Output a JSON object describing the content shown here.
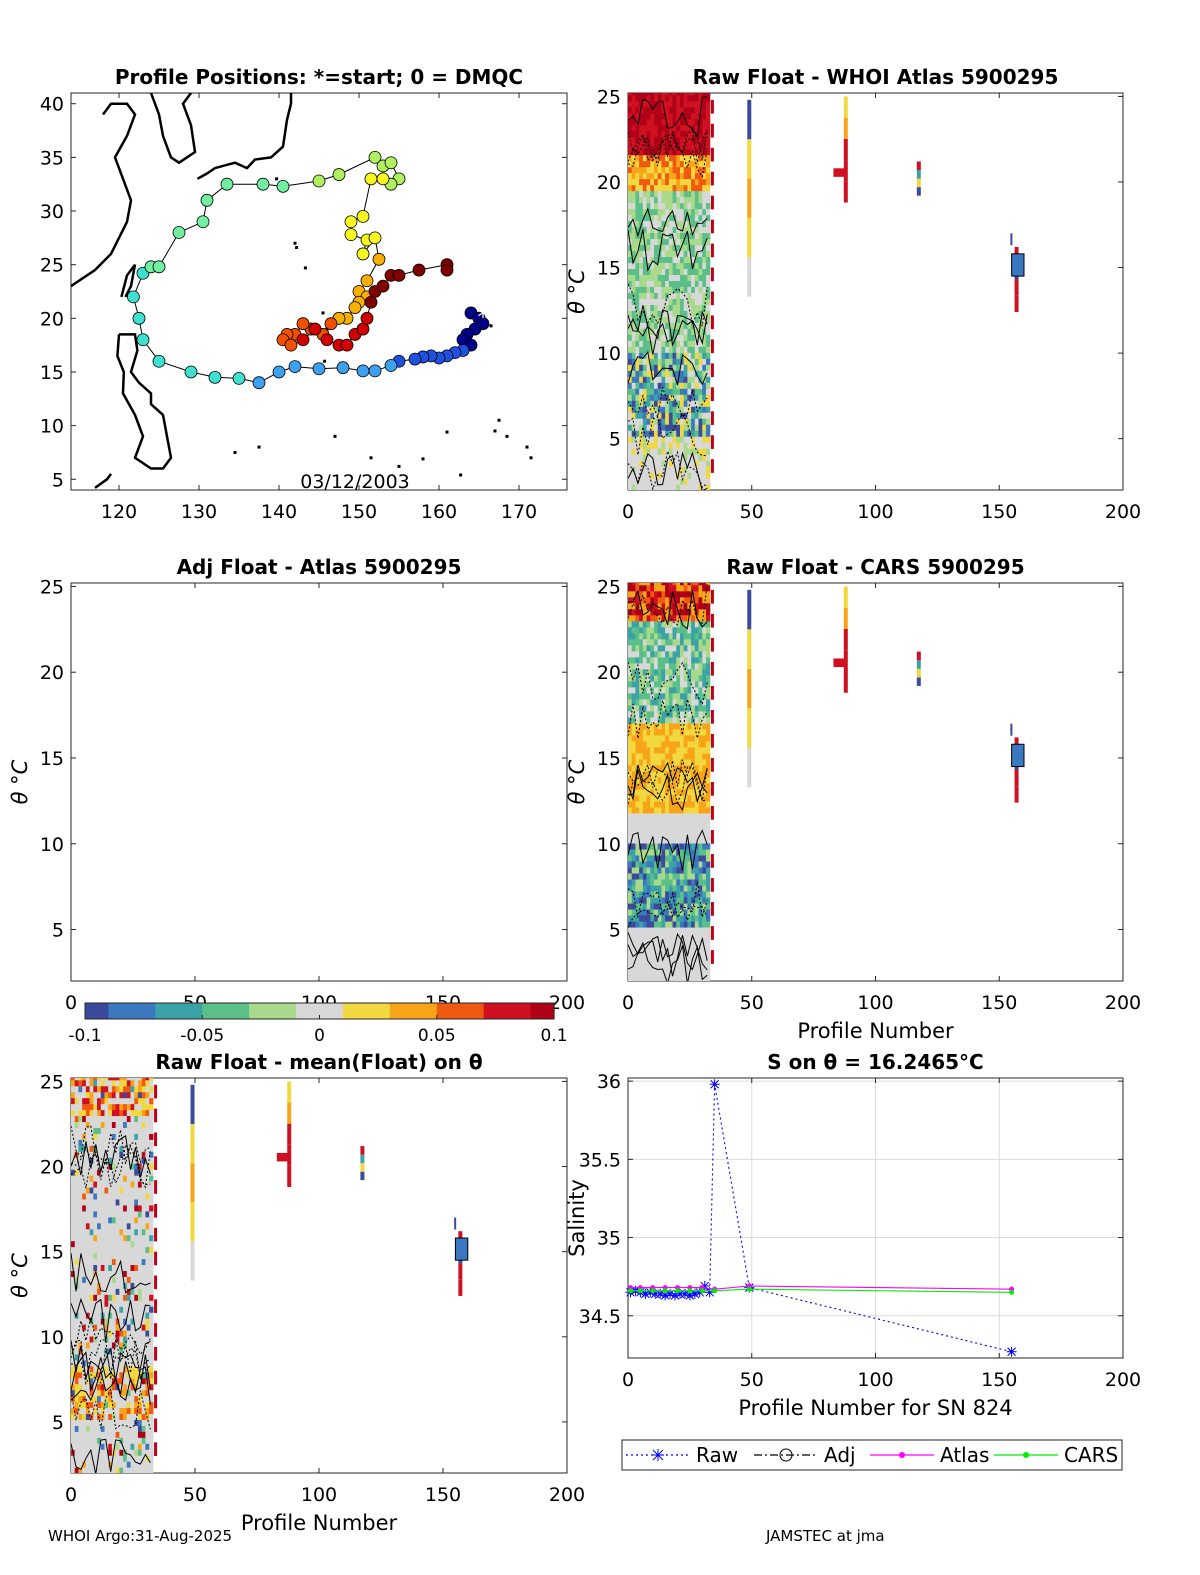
{
  "chart_data": [
    {
      "id": "map",
      "type": "scatter",
      "title": "Profile Positions: *=start; 0 = DMQC",
      "xlim": [
        114,
        176
      ],
      "ylim": [
        4,
        41
      ],
      "xticks": [
        120,
        130,
        140,
        150,
        160,
        170
      ],
      "yticks": [
        5,
        10,
        15,
        20,
        25,
        30,
        35,
        40
      ],
      "date_label": "03/12/2003",
      "track": [
        [
          165,
          20
        ],
        [
          164,
          20.5
        ],
        [
          165,
          20
        ],
        [
          165.5,
          19.5
        ],
        [
          164.5,
          19
        ],
        [
          163.5,
          18.5
        ],
        [
          163,
          18
        ],
        [
          164,
          17.5
        ],
        [
          163,
          17
        ],
        [
          162,
          16.8
        ],
        [
          161,
          16.5
        ],
        [
          160,
          16.3
        ],
        [
          159,
          16.5
        ],
        [
          158,
          16.4
        ],
        [
          157,
          16.2
        ],
        [
          155,
          16
        ],
        [
          154,
          15.6
        ],
        [
          152,
          15.1
        ],
        [
          150.5,
          15.1
        ],
        [
          148,
          15.4
        ],
        [
          145,
          15.3
        ],
        [
          142,
          15.5
        ],
        [
          140,
          15
        ],
        [
          137.5,
          14
        ],
        [
          135,
          14.4
        ],
        [
          132,
          14.5
        ],
        [
          129,
          15
        ],
        [
          125,
          16
        ],
        [
          123,
          18
        ],
        [
          122.5,
          20
        ],
        [
          121.8,
          22
        ],
        [
          123,
          24.2
        ],
        [
          124,
          24.8
        ],
        [
          125,
          24.8
        ],
        [
          127.5,
          28
        ],
        [
          130.5,
          29
        ],
        [
          131,
          31
        ],
        [
          133.5,
          32.5
        ],
        [
          138,
          32.5
        ],
        [
          140.5,
          32.3
        ],
        [
          145,
          32.8
        ],
        [
          147.5,
          33.4
        ],
        [
          152,
          35
        ],
        [
          153,
          34.2
        ],
        [
          154,
          34.5
        ],
        [
          155,
          33
        ],
        [
          154,
          32.5
        ],
        [
          153,
          33
        ],
        [
          151.5,
          33
        ],
        [
          150.5,
          29.5
        ],
        [
          149,
          29
        ],
        [
          149,
          27.8
        ],
        [
          151,
          27.3
        ],
        [
          150.5,
          26
        ],
        [
          152,
          27.5
        ],
        [
          152.5,
          25.5
        ],
        [
          151,
          23.5
        ],
        [
          150,
          22.5
        ],
        [
          151,
          22
        ],
        [
          150,
          21.5
        ],
        [
          149.5,
          21
        ],
        [
          148.5,
          20
        ],
        [
          147.5,
          20
        ],
        [
          146.5,
          19.5
        ],
        [
          145.5,
          18.5
        ],
        [
          144,
          19
        ],
        [
          143,
          19.5
        ],
        [
          142,
          18.5
        ],
        [
          141,
          18.5
        ],
        [
          140.5,
          18
        ],
        [
          141.5,
          17.5
        ],
        [
          143,
          18
        ],
        [
          144.5,
          19
        ],
        [
          146,
          18
        ],
        [
          147.5,
          17.5
        ],
        [
          148.5,
          17.5
        ],
        [
          149.5,
          18.5
        ],
        [
          150.5,
          19
        ],
        [
          151,
          20
        ],
        [
          151.5,
          21.5
        ],
        [
          152,
          22.5
        ],
        [
          153,
          23
        ],
        [
          154,
          24
        ],
        [
          155,
          24
        ],
        [
          157.5,
          24.5
        ],
        [
          161,
          25
        ],
        [
          161,
          24.5
        ]
      ],
      "colorscale": [
        "#00008b",
        "#2050e0",
        "#3da0f0",
        "#40e0d0",
        "#70f0a0",
        "#b0f060",
        "#f8f820",
        "#f8b000",
        "#f05000",
        "#d00000",
        "#800000"
      ]
    },
    {
      "id": "whoi",
      "type": "heatmap",
      "title": "Raw Float - WHOI Atlas  5900295",
      "xlabel": "",
      "ylabel": "θ °C",
      "xlim": [
        0,
        200
      ],
      "ylim": [
        2,
        25.2
      ],
      "xticks": [
        0,
        50,
        100,
        150,
        200
      ],
      "yticks": [
        5,
        10,
        15,
        20,
        25
      ]
    },
    {
      "id": "adj",
      "type": "heatmap",
      "title": "Adj Float - Atlas  5900295",
      "xlabel": "",
      "ylabel": "θ °C",
      "xlim": [
        0,
        200
      ],
      "ylim": [
        2,
        25.2
      ],
      "xticks": [
        0,
        50,
        100,
        150,
        200
      ],
      "yticks": [
        5,
        10,
        15,
        20,
        25
      ]
    },
    {
      "id": "cars",
      "type": "heatmap",
      "title": "Raw Float - CARS  5900295",
      "xlabel": "Profile Number",
      "ylabel": "θ °C",
      "xlim": [
        0,
        200
      ],
      "ylim": [
        2,
        25.2
      ],
      "xticks": [
        0,
        50,
        100,
        150,
        200
      ],
      "yticks": [
        5,
        10,
        15,
        20,
        25
      ]
    },
    {
      "id": "mean",
      "type": "heatmap",
      "title": "Raw Float - mean(Float) on θ",
      "xlabel": "Profile Number",
      "ylabel": "θ °C",
      "xlim": [
        0,
        200
      ],
      "ylim": [
        2,
        25.2
      ],
      "xticks": [
        0,
        50,
        100,
        150,
        200
      ],
      "yticks": [
        5,
        10,
        15,
        20,
        25
      ]
    },
    {
      "id": "salinity",
      "type": "line",
      "title": "S on θ = 16.2465°C",
      "xlabel": "Profile Number for SN 824",
      "ylabel": "Salinity",
      "xlim": [
        0,
        200
      ],
      "ylim": [
        34.23,
        36.02
      ],
      "xticks": [
        0,
        50,
        100,
        150,
        200
      ],
      "yticks": [
        34.5,
        35,
        35.5,
        36
      ],
      "ytick_labels": [
        "34.5",
        "35",
        "35.5",
        "36"
      ],
      "grid": true,
      "series": [
        {
          "name": "Raw",
          "color": "#0000ff",
          "marker": "star",
          "dash": "dotted",
          "x": [
            1,
            3,
            5,
            7,
            9,
            11,
            13,
            15,
            17,
            19,
            21,
            23,
            25,
            27,
            29,
            31,
            33,
            35,
            49,
            155
          ],
          "y": [
            34.65,
            34.66,
            34.65,
            34.64,
            34.65,
            34.64,
            34.64,
            34.63,
            34.64,
            34.63,
            34.64,
            34.64,
            34.63,
            34.64,
            34.65,
            34.69,
            34.65,
            35.98,
            34.68,
            34.27
          ]
        },
        {
          "name": "Adj",
          "color": "#000000",
          "marker": "circle",
          "dash": "dashdot",
          "x": [],
          "y": []
        },
        {
          "name": "Atlas",
          "color": "#ff00ff",
          "marker": "dot",
          "dash": "solid",
          "x": [
            1,
            5,
            10,
            15,
            20,
            25,
            30,
            35,
            49,
            155
          ],
          "y": [
            34.68,
            34.68,
            34.68,
            34.68,
            34.68,
            34.68,
            34.68,
            34.67,
            34.69,
            34.67
          ]
        },
        {
          "name": "CARS",
          "color": "#00ee00",
          "marker": "dot",
          "dash": "solid",
          "x": [
            1,
            5,
            10,
            15,
            20,
            25,
            30,
            35,
            49,
            155
          ],
          "y": [
            34.66,
            34.66,
            34.66,
            34.66,
            34.66,
            34.66,
            34.66,
            34.66,
            34.67,
            34.65
          ]
        }
      ]
    }
  ],
  "colorbar": {
    "ticks": [
      -0.1,
      -0.05,
      0,
      0.05,
      0.1
    ],
    "tick_labels": [
      "-0.1",
      "-0.05",
      "0",
      "0.05",
      "0.1"
    ],
    "colors": [
      "#3b4a9a",
      "#3a78c0",
      "#3ba3a8",
      "#5abf88",
      "#a9d98a",
      "#d8d8d8",
      "#f2d840",
      "#f8a418",
      "#f05a10",
      "#cf1020",
      "#b00018"
    ]
  },
  "footer": {
    "left": "WHOI Argo:31-Aug-2025",
    "right": "JAMSTEC at jma"
  }
}
